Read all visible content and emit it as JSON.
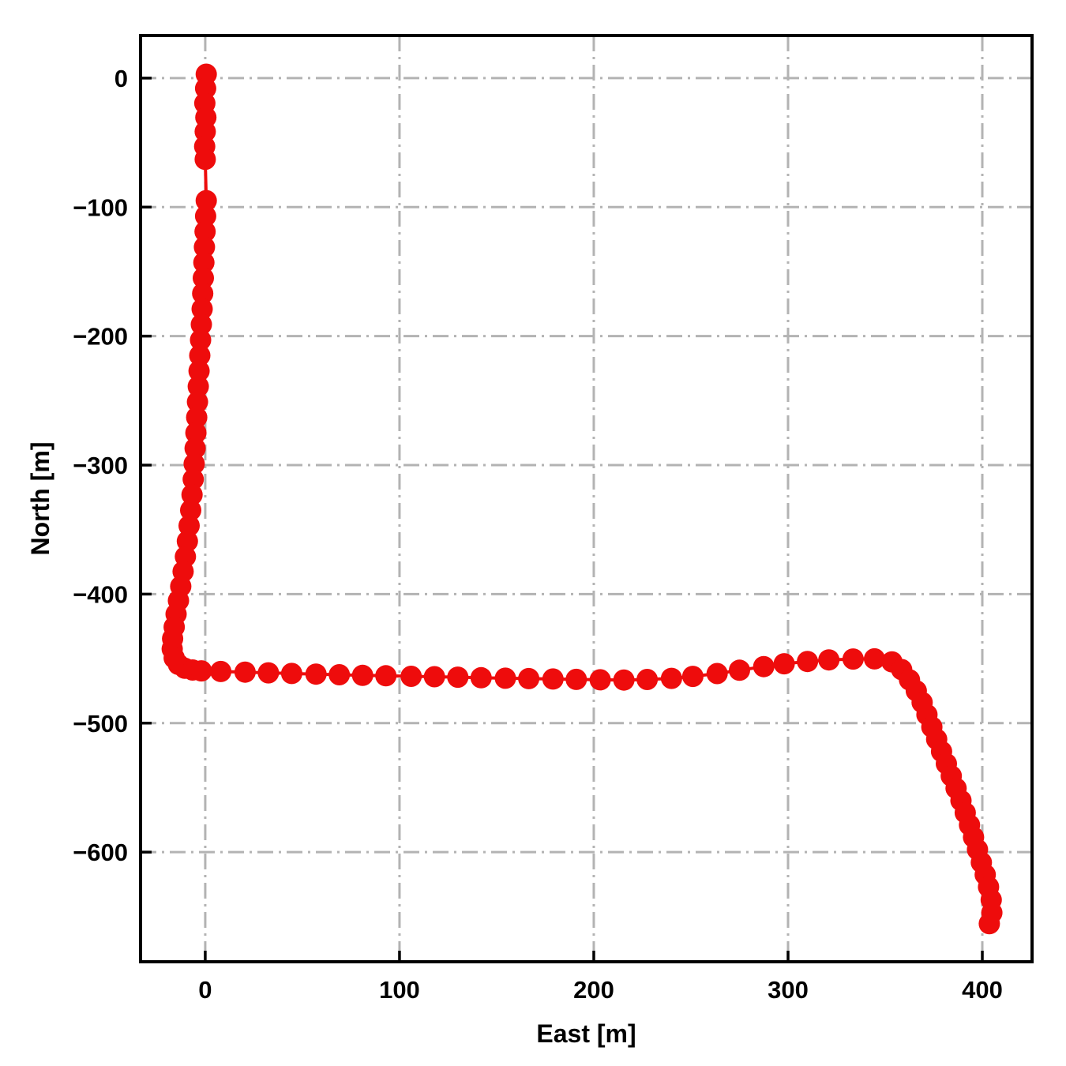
{
  "figure": {
    "background": "#ffffff",
    "border_color": "#000000",
    "grid_color": "#b3b3b3",
    "accent_color": "#ee0c0c"
  },
  "chart_data": {
    "type": "line",
    "title": "",
    "xlabel": "East [m]",
    "ylabel": "North [m]",
    "xlim": [
      -33.3,
      425.6
    ],
    "ylim": [
      -685,
      33
    ],
    "grid": "on",
    "grid_style": "dash-dot",
    "legend": "none",
    "marker": "circle",
    "marker_color": "#ee0c0c",
    "line_color": "#ee0c0c",
    "x_ticks": [
      {
        "v": 0,
        "label": "0"
      },
      {
        "v": 100,
        "label": "100"
      },
      {
        "v": 200,
        "label": "200"
      },
      {
        "v": 300,
        "label": "300"
      },
      {
        "v": 400,
        "label": "400"
      }
    ],
    "y_ticks": [
      {
        "v": 0,
        "label": "0"
      },
      {
        "v": -100,
        "label": "−100"
      },
      {
        "v": -200,
        "label": "−200"
      },
      {
        "v": -300,
        "label": "−300"
      },
      {
        "v": -400,
        "label": "−400"
      },
      {
        "v": -500,
        "label": "−500"
      },
      {
        "v": -600,
        "label": "−600"
      }
    ],
    "series": [
      {
        "name": "trajectory",
        "points": [
          [
            0.5,
            3
          ],
          [
            0.2,
            -8
          ],
          [
            -0.2,
            -19.5
          ],
          [
            0.3,
            -30.5
          ],
          [
            0,
            -41.5
          ],
          [
            -0.3,
            -53
          ],
          [
            0,
            -63
          ],
          [
            0.5,
            -95
          ],
          [
            0.2,
            -107
          ],
          [
            -0.1,
            -119
          ],
          [
            -0.4,
            -131
          ],
          [
            -0.7,
            -143
          ],
          [
            -1,
            -155
          ],
          [
            -1.3,
            -167
          ],
          [
            -1.6,
            -179
          ],
          [
            -2,
            -191
          ],
          [
            -2.4,
            -203
          ],
          [
            -2.8,
            -215
          ],
          [
            -3.2,
            -227
          ],
          [
            -3.6,
            -239
          ],
          [
            -4,
            -251
          ],
          [
            -4.4,
            -263
          ],
          [
            -4.8,
            -275
          ],
          [
            -5.2,
            -287
          ],
          [
            -5.7,
            -299
          ],
          [
            -6.2,
            -311
          ],
          [
            -6.8,
            -323
          ],
          [
            -7.5,
            -335
          ],
          [
            -8.3,
            -347
          ],
          [
            -9.2,
            -359
          ],
          [
            -10.2,
            -371
          ],
          [
            -11.4,
            -382.5
          ],
          [
            -12.6,
            -394
          ],
          [
            -13.8,
            -405
          ],
          [
            -15,
            -415.5
          ],
          [
            -16,
            -425.5
          ],
          [
            -16.8,
            -434.5
          ],
          [
            -17,
            -442.5
          ],
          [
            -16,
            -449.5
          ],
          [
            -13.8,
            -454.5
          ],
          [
            -10.5,
            -457.5
          ],
          [
            -6.5,
            -458.8
          ],
          [
            -2,
            -459.5
          ],
          [
            8,
            -460
          ],
          [
            20.5,
            -460.5
          ],
          [
            32.5,
            -461
          ],
          [
            44.5,
            -461.5
          ],
          [
            57,
            -462
          ],
          [
            69,
            -462.5
          ],
          [
            81,
            -463
          ],
          [
            93,
            -463.3
          ],
          [
            106,
            -463.7
          ],
          [
            118,
            -464
          ],
          [
            130,
            -464.4
          ],
          [
            142,
            -464.8
          ],
          [
            154.5,
            -465.2
          ],
          [
            166.5,
            -465.5
          ],
          [
            179,
            -465.8
          ],
          [
            191,
            -466.1
          ],
          [
            203.3,
            -466.4
          ],
          [
            215.5,
            -466.6
          ],
          [
            227.5,
            -466.2
          ],
          [
            240,
            -465.3
          ],
          [
            251,
            -463.8
          ],
          [
            263.5,
            -461.6
          ],
          [
            275,
            -459
          ],
          [
            287.5,
            -456.2
          ],
          [
            298,
            -454
          ],
          [
            310,
            -452.2
          ],
          [
            321,
            -451
          ],
          [
            333.5,
            -450.3
          ],
          [
            344.5,
            -450.2
          ],
          [
            353.5,
            -452.5
          ],
          [
            358.5,
            -458.5
          ],
          [
            362.5,
            -466.5
          ],
          [
            366,
            -475
          ],
          [
            369,
            -484
          ],
          [
            371.5,
            -493.5
          ],
          [
            374,
            -503
          ],
          [
            376.5,
            -512.5
          ],
          [
            379,
            -522
          ],
          [
            381.5,
            -531.5
          ],
          [
            384,
            -541
          ],
          [
            386.5,
            -550.5
          ],
          [
            389,
            -560
          ],
          [
            391.2,
            -569.5
          ],
          [
            393.4,
            -579
          ],
          [
            395.5,
            -588.5
          ],
          [
            397.5,
            -598
          ],
          [
            399.5,
            -608
          ],
          [
            401.5,
            -617.5
          ],
          [
            403.2,
            -627
          ],
          [
            404.6,
            -637
          ],
          [
            404.9,
            -647
          ],
          [
            403.6,
            -655.5
          ]
        ]
      }
    ]
  }
}
